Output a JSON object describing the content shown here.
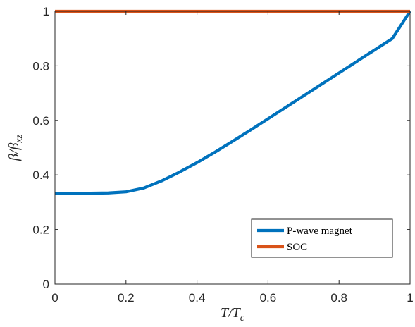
{
  "chart_data": {
    "type": "line",
    "xlabel": "T/T_c",
    "ylabel": "β/β_xz",
    "xlim": [
      0,
      1
    ],
    "ylim": [
      0,
      1
    ],
    "x_ticks": [
      "0",
      "0.2",
      "0.4",
      "0.6",
      "0.8",
      "1"
    ],
    "y_ticks": [
      "0",
      "0.2",
      "0.4",
      "0.6",
      "0.8",
      "1"
    ],
    "grid": false,
    "legend_position": "bottom-right",
    "series": [
      {
        "name": "P-wave magnet",
        "color": "#0072BD",
        "x": [
          0,
          0.05,
          0.1,
          0.15,
          0.2,
          0.25,
          0.3,
          0.35,
          0.4,
          0.45,
          0.5,
          0.55,
          0.6,
          0.65,
          0.7,
          0.75,
          0.8,
          0.85,
          0.9,
          0.95,
          1.0
        ],
        "y": [
          0.333,
          0.333,
          0.333,
          0.334,
          0.338,
          0.352,
          0.378,
          0.41,
          0.445,
          0.483,
          0.523,
          0.564,
          0.606,
          0.648,
          0.69,
          0.732,
          0.774,
          0.816,
          0.858,
          0.9,
          1.0
        ]
      },
      {
        "name": "SOC",
        "color": "#D95319",
        "x": [
          0,
          1
        ],
        "y": [
          1,
          1
        ]
      }
    ]
  }
}
